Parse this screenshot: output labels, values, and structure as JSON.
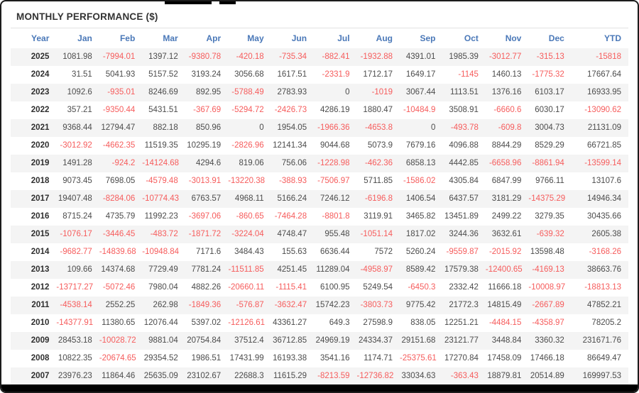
{
  "title": "MONTHLY PERFORMANCE ($)",
  "colors": {
    "header_text": "#4a78b8",
    "negative_value": "#f65c5c",
    "positive_value": "#4c4c4c",
    "title_text": "#333333",
    "row_stripe": "#f4f4f4",
    "frame_border": "#1c1c1c"
  },
  "table": {
    "columns": [
      "Year",
      "Jan",
      "Feb",
      "Mar",
      "Apr",
      "May",
      "Jun",
      "Jul",
      "Aug",
      "Sep",
      "Oct",
      "Nov",
      "Dec",
      "YTD"
    ],
    "rows": [
      {
        "year": "2025",
        "values": [
          "1081.98",
          "-7994.01",
          "1397.12",
          "-9380.78",
          "-420.18",
          "-735.34",
          "-882.41",
          "-1932.88",
          "4391.01",
          "1985.39",
          "-3012.77",
          "-315.13",
          "-15818"
        ]
      },
      {
        "year": "2024",
        "values": [
          "31.51",
          "5041.93",
          "5157.52",
          "3193.24",
          "3056.68",
          "1617.51",
          "-2331.9",
          "1712.17",
          "1649.17",
          "-1145",
          "1460.13",
          "-1775.32",
          "17667.64"
        ]
      },
      {
        "year": "2023",
        "values": [
          "1092.6",
          "-935.01",
          "8246.69",
          "892.95",
          "-5788.49",
          "2783.93",
          "0",
          "-1019",
          "3067.44",
          "1113.51",
          "1376.16",
          "6103.17",
          "16933.95"
        ]
      },
      {
        "year": "2022",
        "values": [
          "357.21",
          "-9350.44",
          "5431.51",
          "-367.69",
          "-5294.72",
          "-2426.73",
          "4286.19",
          "1880.47",
          "-10484.9",
          "3508.91",
          "-6660.6",
          "6030.17",
          "-13090.62"
        ]
      },
      {
        "year": "2021",
        "values": [
          "9368.44",
          "12794.47",
          "882.18",
          "850.96",
          "0",
          "1954.05",
          "-1966.36",
          "-4653.8",
          "0",
          "-493.78",
          "-609.8",
          "3004.73",
          "21131.09"
        ]
      },
      {
        "year": "2020",
        "values": [
          "-3012.92",
          "-4662.35",
          "11519.35",
          "10295.19",
          "-2826.96",
          "12141.34",
          "9044.68",
          "5073.9",
          "7679.16",
          "4096.88",
          "8844.29",
          "8529.29",
          "66721.85"
        ]
      },
      {
        "year": "2019",
        "values": [
          "1491.28",
          "-924.2",
          "-14124.68",
          "4294.6",
          "819.06",
          "756.06",
          "-1228.98",
          "-462.36",
          "6858.13",
          "4442.85",
          "-6658.96",
          "-8861.94",
          "-13599.14"
        ]
      },
      {
        "year": "2018",
        "values": [
          "9073.45",
          "7698.05",
          "-4579.48",
          "-3013.91",
          "-13220.38",
          "-388.93",
          "-7506.97",
          "5711.85",
          "-1586.02",
          "4305.84",
          "6847.99",
          "9766.11",
          "13107.6"
        ]
      },
      {
        "year": "2017",
        "values": [
          "19407.48",
          "-8284.06",
          "-10774.43",
          "6763.57",
          "4968.11",
          "5166.24",
          "7246.12",
          "-6196.8",
          "1406.54",
          "6437.57",
          "3181.29",
          "-14375.29",
          "14946.34"
        ]
      },
      {
        "year": "2016",
        "values": [
          "8715.24",
          "4735.79",
          "11992.23",
          "-3697.06",
          "-860.65",
          "-7464.28",
          "-8801.8",
          "3119.91",
          "3465.82",
          "13451.89",
          "2499.22",
          "3279.35",
          "30435.66"
        ]
      },
      {
        "year": "2015",
        "values": [
          "-1076.17",
          "-3446.45",
          "-483.72",
          "-1871.72",
          "-3224.04",
          "4748.47",
          "955.48",
          "-1051.14",
          "1817.02",
          "3244.36",
          "3632.61",
          "-639.32",
          "2605.38"
        ]
      },
      {
        "year": "2014",
        "values": [
          "-9682.77",
          "-14839.68",
          "-10948.84",
          "7171.6",
          "3484.43",
          "155.63",
          "6636.44",
          "7572",
          "5260.24",
          "-9559.87",
          "-2015.92",
          "13598.48",
          "-3168.26"
        ]
      },
      {
        "year": "2013",
        "values": [
          "109.66",
          "14374.68",
          "7729.49",
          "7781.24",
          "-11511.85",
          "4251.45",
          "11289.04",
          "-4958.97",
          "8589.42",
          "17579.38",
          "-12400.65",
          "-4169.13",
          "38663.76"
        ]
      },
      {
        "year": "2012",
        "values": [
          "-13717.27",
          "-5072.46",
          "7980.04",
          "4882.26",
          "-20660.11",
          "-1115.41",
          "6100.95",
          "5249.54",
          "-6450.3",
          "2332.42",
          "11666.18",
          "-10008.97",
          "-18813.13"
        ]
      },
      {
        "year": "2011",
        "values": [
          "-4538.14",
          "2552.25",
          "262.98",
          "-1849.36",
          "-576.87",
          "-3632.47",
          "15742.23",
          "-3803.73",
          "9775.42",
          "21772.3",
          "14815.49",
          "-2667.89",
          "47852.21"
        ]
      },
      {
        "year": "2010",
        "values": [
          "-14377.91",
          "11380.65",
          "12076.44",
          "5397.02",
          "-12126.61",
          "43361.27",
          "649.3",
          "27598.9",
          "838.05",
          "12251.21",
          "-4484.15",
          "-4358.97",
          "78205.2"
        ]
      },
      {
        "year": "2009",
        "values": [
          "28453.18",
          "-10028.72",
          "9881.04",
          "20754.84",
          "37512.4",
          "36712.85",
          "24969.19",
          "24334.37",
          "29151.68",
          "23121.77",
          "3448.84",
          "3360.32",
          "231671.76"
        ]
      },
      {
        "year": "2008",
        "values": [
          "10822.35",
          "-20674.65",
          "29354.52",
          "1986.51",
          "17431.99",
          "16193.38",
          "3541.16",
          "1174.71",
          "-25375.61",
          "17270.84",
          "17458.09",
          "17466.18",
          "86649.47"
        ]
      },
      {
        "year": "2007",
        "values": [
          "23976.23",
          "11864.46",
          "25635.09",
          "23102.67",
          "22688.3",
          "11615.29",
          "-8213.59",
          "-12736.82",
          "33034.63",
          "-363.43",
          "18879.81",
          "20514.89",
          "169997.53"
        ]
      }
    ]
  }
}
